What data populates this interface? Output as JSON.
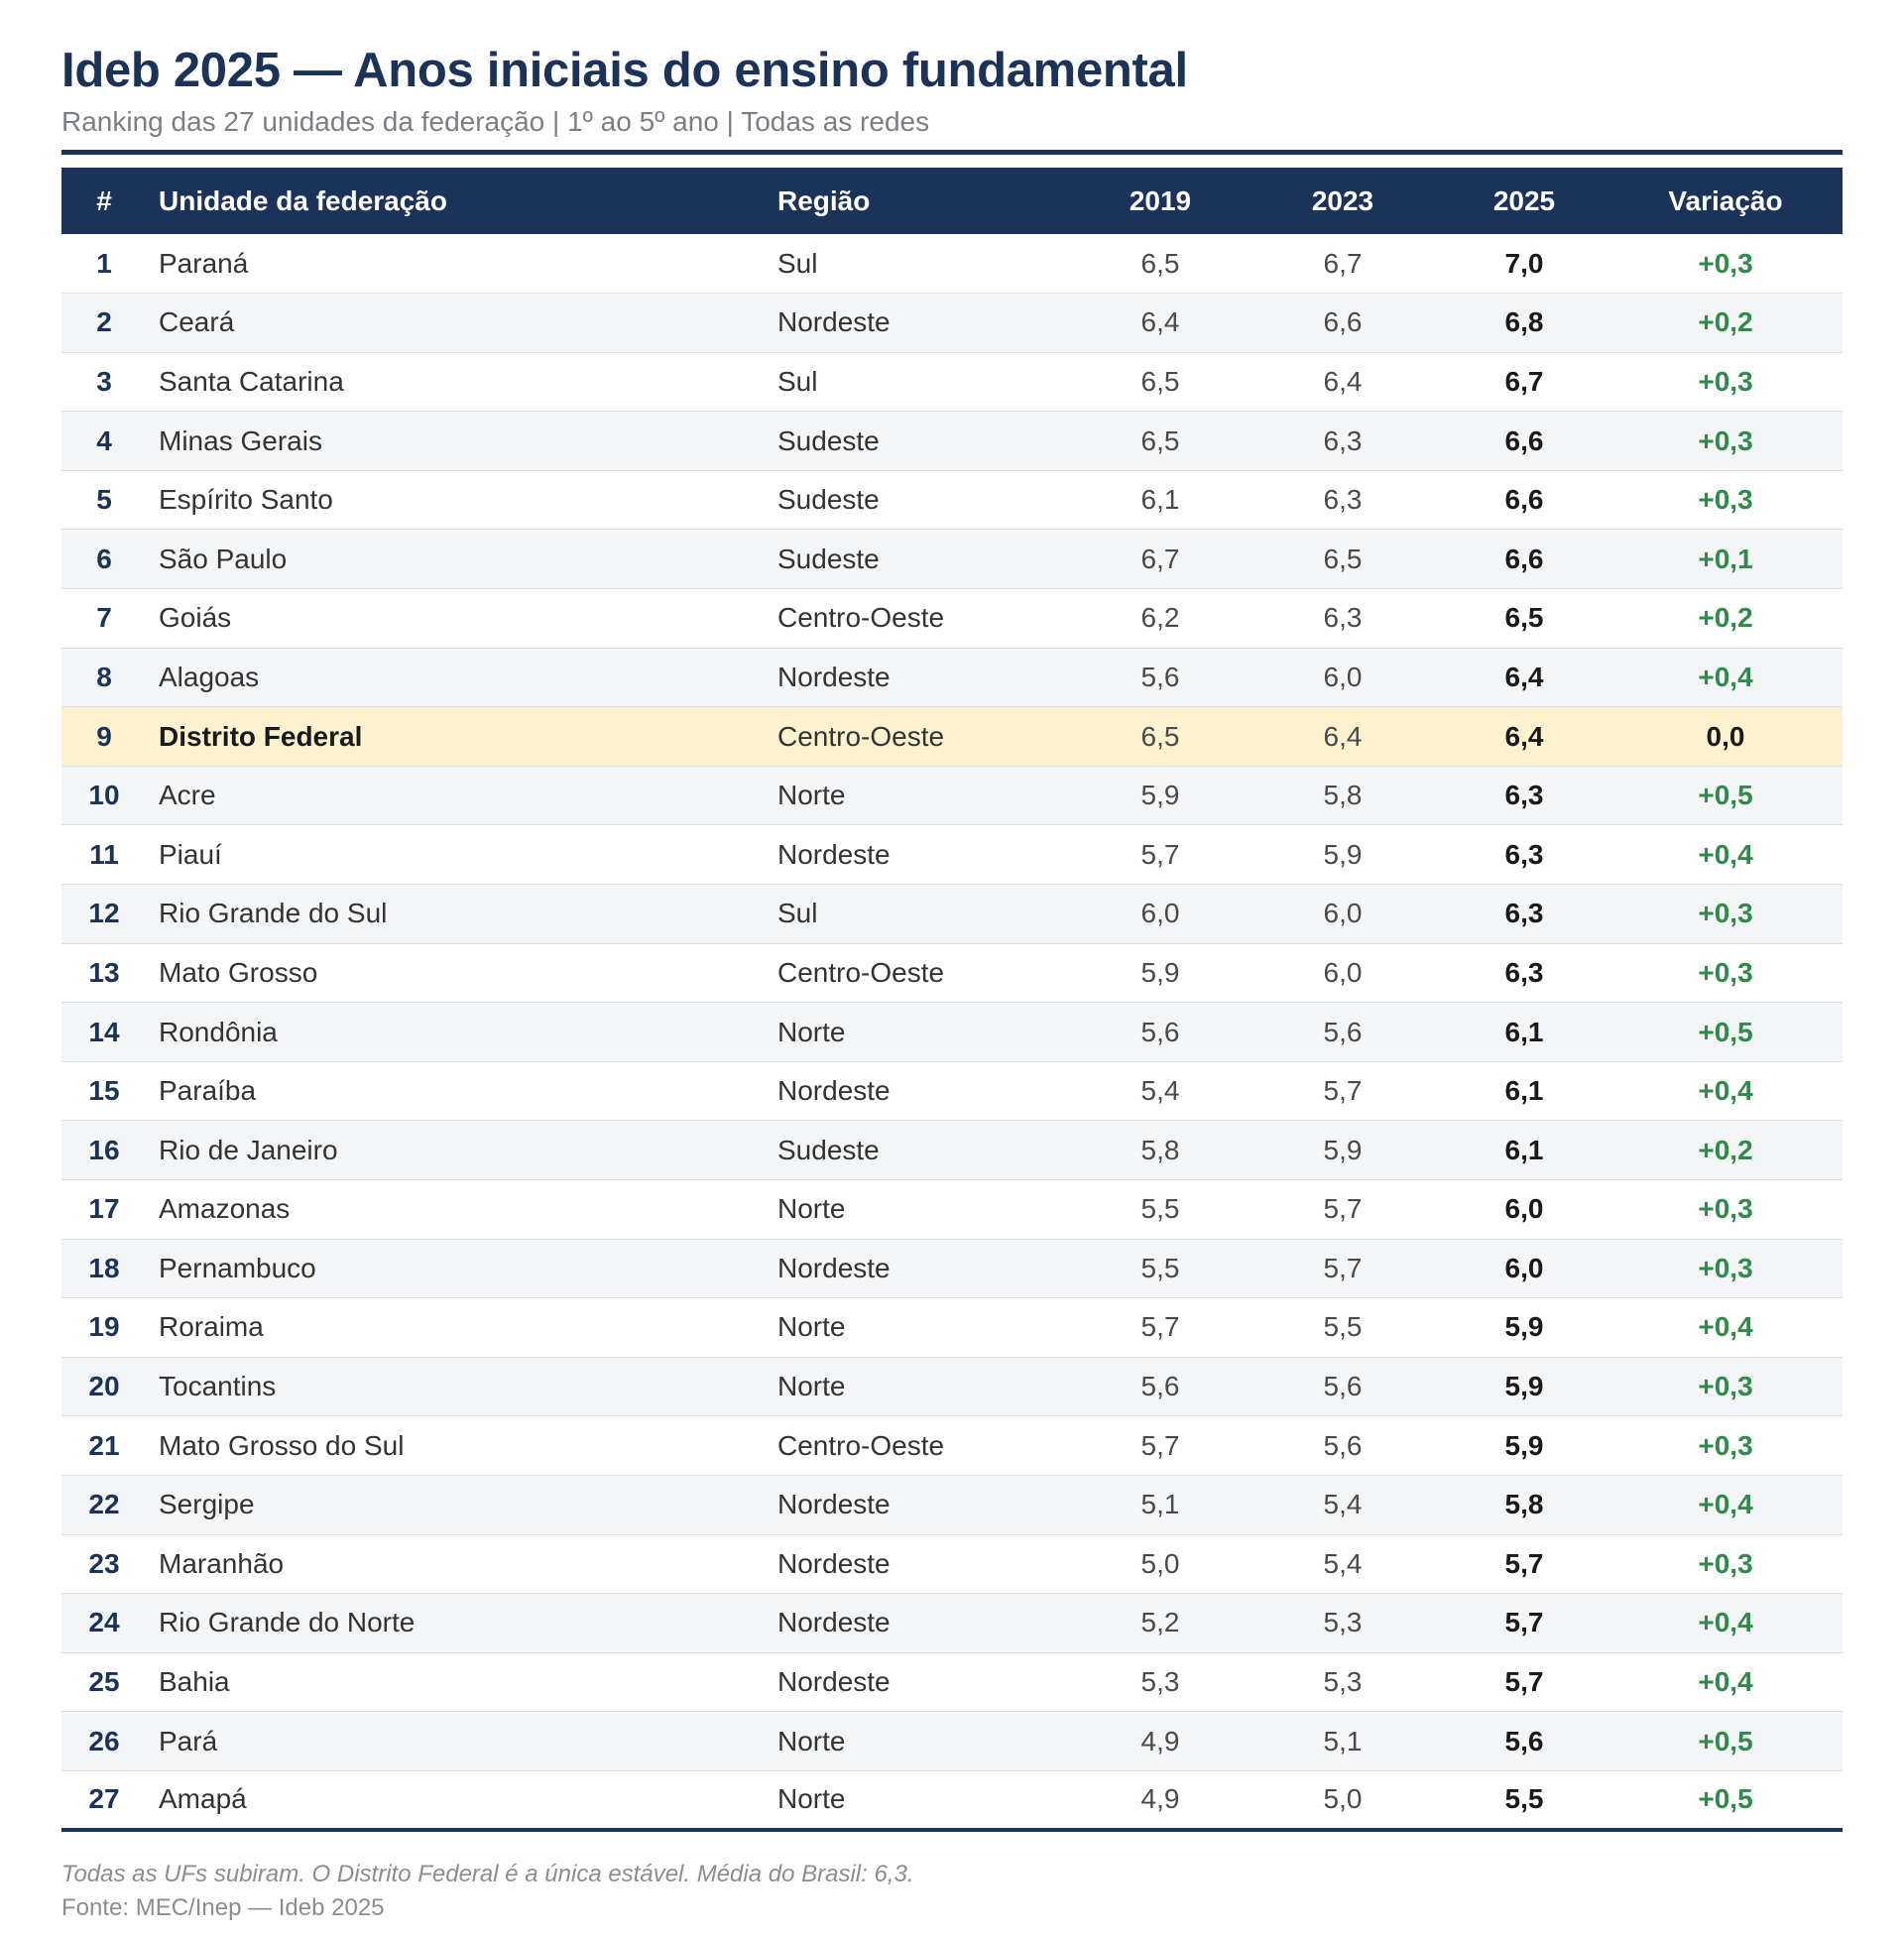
{
  "header": {
    "title": "Ideb 2025 — Anos iniciais do ensino fundamental",
    "subtitle": "Ranking das 27 unidades da federação | 1º ao 5º ano | Todas as redes"
  },
  "colors": {
    "header_bg": "#1b3358",
    "highlight_row": "#fdf2cf",
    "positive_variation": "#2e8b49"
  },
  "chart_data": {
    "type": "table",
    "columns": [
      "#",
      "Unidade da federação",
      "Região",
      "2019",
      "2023",
      "2025",
      "Variação"
    ],
    "rows": [
      {
        "rank": "1",
        "uf": "Paraná",
        "regiao": "Sul",
        "y2019": "6,5",
        "y2023": "6,7",
        "y2025": "7,0",
        "variacao": "+0,3"
      },
      {
        "rank": "2",
        "uf": "Ceará",
        "regiao": "Nordeste",
        "y2019": "6,4",
        "y2023": "6,6",
        "y2025": "6,8",
        "variacao": "+0,2"
      },
      {
        "rank": "3",
        "uf": "Santa Catarina",
        "regiao": "Sul",
        "y2019": "6,5",
        "y2023": "6,4",
        "y2025": "6,7",
        "variacao": "+0,3"
      },
      {
        "rank": "4",
        "uf": "Minas Gerais",
        "regiao": "Sudeste",
        "y2019": "6,5",
        "y2023": "6,3",
        "y2025": "6,6",
        "variacao": "+0,3"
      },
      {
        "rank": "5",
        "uf": "Espírito Santo",
        "regiao": "Sudeste",
        "y2019": "6,1",
        "y2023": "6,3",
        "y2025": "6,6",
        "variacao": "+0,3"
      },
      {
        "rank": "6",
        "uf": "São Paulo",
        "regiao": "Sudeste",
        "y2019": "6,7",
        "y2023": "6,5",
        "y2025": "6,6",
        "variacao": "+0,1"
      },
      {
        "rank": "7",
        "uf": "Goiás",
        "regiao": "Centro-Oeste",
        "y2019": "6,2",
        "y2023": "6,3",
        "y2025": "6,5",
        "variacao": "+0,2"
      },
      {
        "rank": "8",
        "uf": "Alagoas",
        "regiao": "Nordeste",
        "y2019": "5,6",
        "y2023": "6,0",
        "y2025": "6,4",
        "variacao": "+0,4"
      },
      {
        "rank": "9",
        "uf": "Distrito Federal",
        "regiao": "Centro-Oeste",
        "y2019": "6,5",
        "y2023": "6,4",
        "y2025": "6,4",
        "variacao": "0,0",
        "highlight": true
      },
      {
        "rank": "10",
        "uf": "Acre",
        "regiao": "Norte",
        "y2019": "5,9",
        "y2023": "5,8",
        "y2025": "6,3",
        "variacao": "+0,5"
      },
      {
        "rank": "11",
        "uf": "Piauí",
        "regiao": "Nordeste",
        "y2019": "5,7",
        "y2023": "5,9",
        "y2025": "6,3",
        "variacao": "+0,4"
      },
      {
        "rank": "12",
        "uf": "Rio Grande do Sul",
        "regiao": "Sul",
        "y2019": "6,0",
        "y2023": "6,0",
        "y2025": "6,3",
        "variacao": "+0,3"
      },
      {
        "rank": "13",
        "uf": "Mato Grosso",
        "regiao": "Centro-Oeste",
        "y2019": "5,9",
        "y2023": "6,0",
        "y2025": "6,3",
        "variacao": "+0,3"
      },
      {
        "rank": "14",
        "uf": "Rondônia",
        "regiao": "Norte",
        "y2019": "5,6",
        "y2023": "5,6",
        "y2025": "6,1",
        "variacao": "+0,5"
      },
      {
        "rank": "15",
        "uf": "Paraíba",
        "regiao": "Nordeste",
        "y2019": "5,4",
        "y2023": "5,7",
        "y2025": "6,1",
        "variacao": "+0,4"
      },
      {
        "rank": "16",
        "uf": "Rio de Janeiro",
        "regiao": "Sudeste",
        "y2019": "5,8",
        "y2023": "5,9",
        "y2025": "6,1",
        "variacao": "+0,2"
      },
      {
        "rank": "17",
        "uf": "Amazonas",
        "regiao": "Norte",
        "y2019": "5,5",
        "y2023": "5,7",
        "y2025": "6,0",
        "variacao": "+0,3"
      },
      {
        "rank": "18",
        "uf": "Pernambuco",
        "regiao": "Nordeste",
        "y2019": "5,5",
        "y2023": "5,7",
        "y2025": "6,0",
        "variacao": "+0,3"
      },
      {
        "rank": "19",
        "uf": "Roraima",
        "regiao": "Norte",
        "y2019": "5,7",
        "y2023": "5,5",
        "y2025": "5,9",
        "variacao": "+0,4"
      },
      {
        "rank": "20",
        "uf": "Tocantins",
        "regiao": "Norte",
        "y2019": "5,6",
        "y2023": "5,6",
        "y2025": "5,9",
        "variacao": "+0,3"
      },
      {
        "rank": "21",
        "uf": "Mato Grosso do Sul",
        "regiao": "Centro-Oeste",
        "y2019": "5,7",
        "y2023": "5,6",
        "y2025": "5,9",
        "variacao": "+0,3"
      },
      {
        "rank": "22",
        "uf": "Sergipe",
        "regiao": "Nordeste",
        "y2019": "5,1",
        "y2023": "5,4",
        "y2025": "5,8",
        "variacao": "+0,4"
      },
      {
        "rank": "23",
        "uf": "Maranhão",
        "regiao": "Nordeste",
        "y2019": "5,0",
        "y2023": "5,4",
        "y2025": "5,7",
        "variacao": "+0,3"
      },
      {
        "rank": "24",
        "uf": "Rio Grande do Norte",
        "regiao": "Nordeste",
        "y2019": "5,2",
        "y2023": "5,3",
        "y2025": "5,7",
        "variacao": "+0,4"
      },
      {
        "rank": "25",
        "uf": "Bahia",
        "regiao": "Nordeste",
        "y2019": "5,3",
        "y2023": "5,3",
        "y2025": "5,7",
        "variacao": "+0,4"
      },
      {
        "rank": "26",
        "uf": "Pará",
        "regiao": "Norte",
        "y2019": "4,9",
        "y2023": "5,1",
        "y2025": "5,6",
        "variacao": "+0,5"
      },
      {
        "rank": "27",
        "uf": "Amapá",
        "regiao": "Norte",
        "y2019": "4,9",
        "y2023": "5,0",
        "y2025": "5,5",
        "variacao": "+0,5"
      }
    ]
  },
  "footer": {
    "note": "Todas as UFs subiram. O Distrito Federal é a única estável. Média do Brasil: 6,3.",
    "source": "Fonte: MEC/Inep — Ideb 2025"
  }
}
